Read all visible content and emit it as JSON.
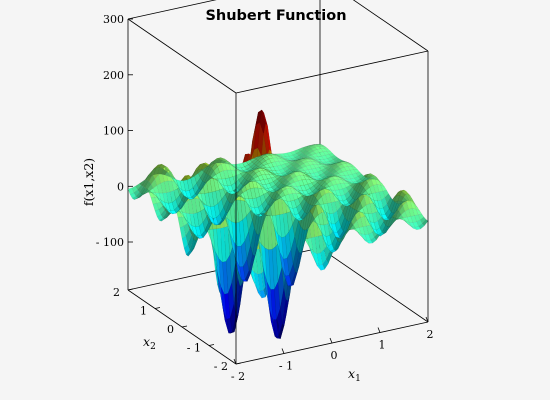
{
  "chart_data": {
    "type": "surface",
    "title": "Shubert Function",
    "function": "f(x1,x2) = (sum_{i=1..5} i*cos((i+1)*x1 + i)) * (sum_{i=1..5} i*cos((i+1)*x2 + i))",
    "xlabel": "x",
    "xlabel_sub": "1",
    "ylabel": "x",
    "ylabel_sub": "2",
    "zlabel": "f(x1,x2)",
    "xlim": [
      -2,
      2
    ],
    "ylim": [
      -2,
      2
    ],
    "zlim": [
      -186,
      300
    ],
    "x_ticks": [
      -2,
      -1,
      0,
      1,
      2
    ],
    "x_tick_labels": [
      "- 2",
      "- 1",
      "0",
      "1",
      "2"
    ],
    "y_ticks": [
      -2,
      -1,
      0,
      1,
      2
    ],
    "y_tick_labels": [
      "- 2",
      "- 1",
      "0",
      "1",
      "2"
    ],
    "z_ticks": [
      300,
      200,
      100,
      0,
      -100
    ],
    "z_tick_labels": [
      "300",
      "200",
      "100",
      "0",
      "- 100"
    ],
    "grid": false,
    "colormap": "jet",
    "color_range": [
      -186.7,
      210.5
    ]
  }
}
